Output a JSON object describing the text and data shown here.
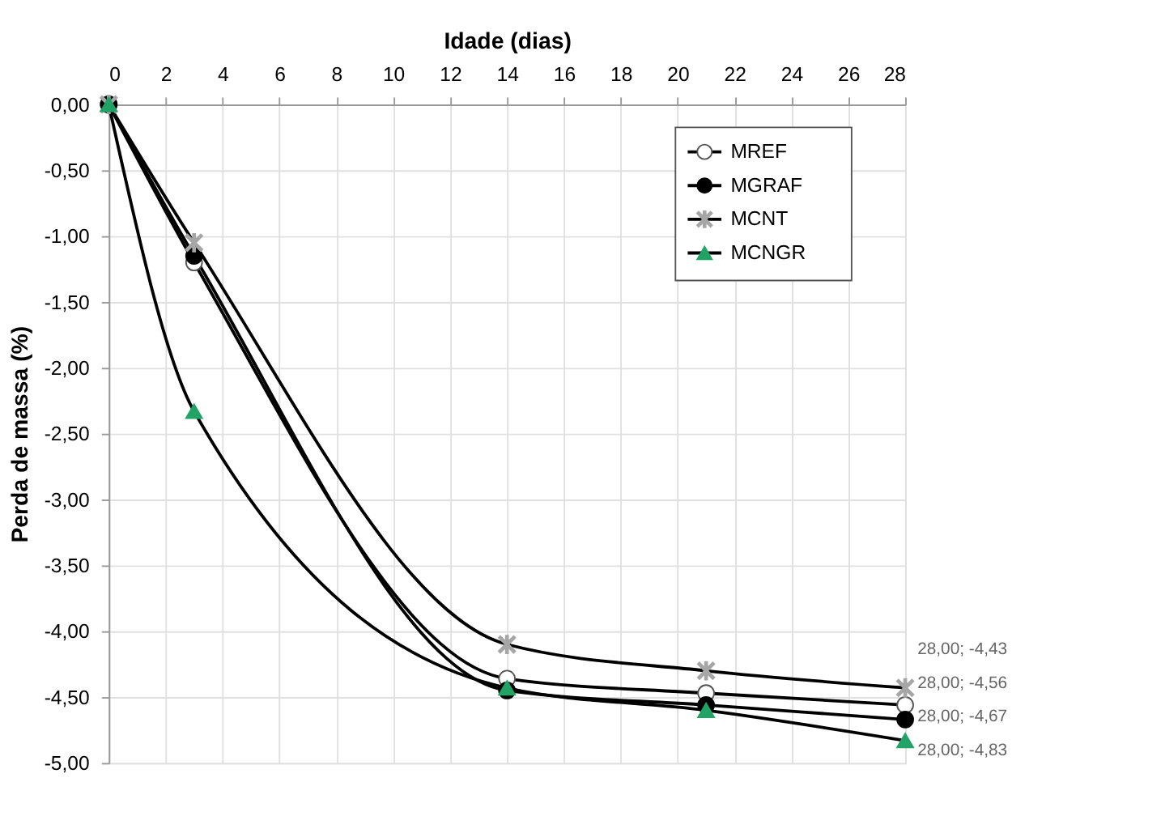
{
  "chart_data": {
    "type": "line",
    "xlabel": "Idade (dias)",
    "ylabel": "Perda de massa (%)",
    "x": [
      0,
      3,
      14,
      21,
      28
    ],
    "series": [
      {
        "name": "MREF",
        "color": "#ffffff",
        "marker": "circle",
        "values": [
          0,
          -1.2,
          -4.36,
          -4.47,
          -4.56
        ]
      },
      {
        "name": "MGRAF",
        "color": "#000000",
        "marker": "circle",
        "values": [
          0,
          -1.15,
          -4.45,
          -4.56,
          -4.67
        ]
      },
      {
        "name": "MCNT",
        "color": "#a6a6a6",
        "marker": "cross",
        "values": [
          0,
          -1.05,
          -4.1,
          -4.3,
          -4.43
        ]
      },
      {
        "name": "MCNGR",
        "color": "#21a366",
        "marker": "triangle",
        "values": [
          0,
          -2.33,
          -4.43,
          -4.6,
          -4.83
        ]
      }
    ],
    "xlim": [
      0,
      28
    ],
    "xticks": [
      0,
      2,
      4,
      6,
      8,
      10,
      12,
      14,
      16,
      18,
      20,
      22,
      24,
      26,
      28
    ],
    "ylim": [
      -5,
      0
    ],
    "yticks": [
      {
        "value": 0,
        "label": "0,00"
      },
      {
        "value": -0.5,
        "label": "-0,50"
      },
      {
        "value": -1,
        "label": "-1,00"
      },
      {
        "value": -1.5,
        "label": "-1,50"
      },
      {
        "value": -2,
        "label": "-2,00"
      },
      {
        "value": -2.5,
        "label": "-2,50"
      },
      {
        "value": -3,
        "label": "-3,00"
      },
      {
        "value": -3.5,
        "label": "-3,50"
      },
      {
        "value": -4,
        "label": "-4,00"
      },
      {
        "value": -4.5,
        "label": "-4,50"
      },
      {
        "value": -5,
        "label": "-5,00"
      }
    ],
    "annotations": [
      "28,00; -4,43",
      "28,00; -4,56",
      "28,00; -4,67",
      "28,00; -4,83"
    ],
    "grid": true,
    "legend": "top right"
  }
}
